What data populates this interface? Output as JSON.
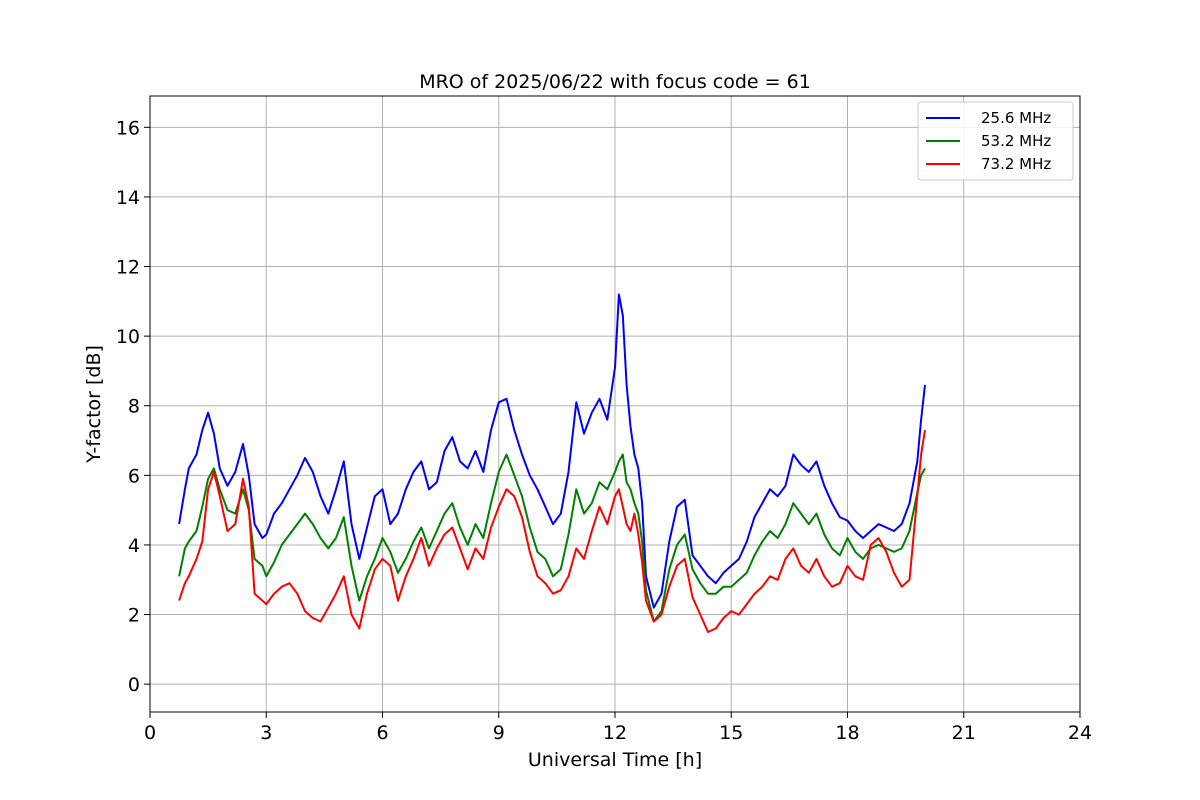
{
  "chart_data": {
    "type": "line",
    "title": "MRO of 2025/06/22 with focus code = 61",
    "xlabel": "Universal Time [h]",
    "ylabel": "Y-factor [dB]",
    "xlim": [
      0,
      24
    ],
    "ylim": [
      -0.8,
      16.9
    ],
    "xticks": [
      0,
      3,
      6,
      9,
      12,
      15,
      18,
      21,
      24
    ],
    "yticks": [
      0,
      2,
      4,
      6,
      8,
      10,
      12,
      14,
      16
    ],
    "grid": true,
    "legend_position": "top-right",
    "series": [
      {
        "name": "25.6 MHz",
        "color": "#0000ff",
        "x": [
          0.75,
          0.9,
          1.0,
          1.2,
          1.35,
          1.5,
          1.65,
          1.8,
          2.0,
          2.2,
          2.4,
          2.55,
          2.7,
          2.9,
          3.0,
          3.2,
          3.4,
          3.6,
          3.8,
          4.0,
          4.2,
          4.4,
          4.6,
          4.8,
          5.0,
          5.2,
          5.4,
          5.6,
          5.8,
          6.0,
          6.2,
          6.4,
          6.6,
          6.8,
          7.0,
          7.2,
          7.4,
          7.6,
          7.8,
          8.0,
          8.2,
          8.4,
          8.6,
          8.8,
          9.0,
          9.2,
          9.4,
          9.6,
          9.8,
          10.0,
          10.2,
          10.4,
          10.6,
          10.8,
          11.0,
          11.2,
          11.4,
          11.6,
          11.8,
          12.0,
          12.1,
          12.2,
          12.3,
          12.4,
          12.5,
          12.6,
          12.7,
          12.8,
          13.0,
          13.2,
          13.4,
          13.6,
          13.8,
          14.0,
          14.2,
          14.4,
          14.6,
          14.8,
          15.0,
          15.2,
          15.4,
          15.6,
          15.8,
          16.0,
          16.2,
          16.4,
          16.6,
          16.8,
          17.0,
          17.2,
          17.4,
          17.6,
          17.8,
          18.0,
          18.2,
          18.4,
          18.6,
          18.8,
          19.0,
          19.2,
          19.4,
          19.6,
          19.8,
          19.9,
          20.0
        ],
        "y": [
          4.6,
          5.6,
          6.2,
          6.6,
          7.3,
          7.8,
          7.2,
          6.2,
          5.7,
          6.1,
          6.9,
          6.0,
          4.6,
          4.2,
          4.3,
          4.9,
          5.2,
          5.6,
          6.0,
          6.5,
          6.1,
          5.4,
          4.9,
          5.6,
          6.4,
          4.6,
          3.6,
          4.5,
          5.4,
          5.6,
          4.6,
          4.9,
          5.6,
          6.1,
          6.4,
          5.6,
          5.8,
          6.7,
          7.1,
          6.4,
          6.2,
          6.7,
          6.1,
          7.3,
          8.1,
          8.2,
          7.3,
          6.6,
          6.0,
          5.6,
          5.1,
          4.6,
          4.9,
          6.1,
          8.1,
          7.2,
          7.8,
          8.2,
          7.6,
          9.1,
          11.2,
          10.6,
          8.6,
          7.4,
          6.6,
          6.2,
          5.2,
          3.1,
          2.2,
          2.6,
          4.1,
          5.1,
          5.3,
          3.7,
          3.4,
          3.1,
          2.9,
          3.2,
          3.4,
          3.6,
          4.1,
          4.8,
          5.2,
          5.6,
          5.4,
          5.7,
          6.6,
          6.3,
          6.1,
          6.4,
          5.7,
          5.2,
          4.8,
          4.7,
          4.4,
          4.2,
          4.4,
          4.6,
          4.5,
          4.4,
          4.6,
          5.2,
          6.4,
          7.6,
          8.6
        ]
      },
      {
        "name": "53.2 MHz",
        "color": "#008000",
        "x": [
          0.75,
          0.9,
          1.0,
          1.2,
          1.35,
          1.5,
          1.65,
          1.8,
          2.0,
          2.2,
          2.4,
          2.55,
          2.7,
          2.9,
          3.0,
          3.2,
          3.4,
          3.6,
          3.8,
          4.0,
          4.2,
          4.4,
          4.6,
          4.8,
          5.0,
          5.2,
          5.4,
          5.6,
          5.8,
          6.0,
          6.2,
          6.4,
          6.6,
          6.8,
          7.0,
          7.2,
          7.4,
          7.6,
          7.8,
          8.0,
          8.2,
          8.4,
          8.6,
          8.8,
          9.0,
          9.2,
          9.4,
          9.6,
          9.8,
          10.0,
          10.2,
          10.4,
          10.6,
          10.8,
          11.0,
          11.2,
          11.4,
          11.6,
          11.8,
          12.0,
          12.1,
          12.2,
          12.3,
          12.4,
          12.5,
          12.6,
          12.7,
          12.8,
          13.0,
          13.2,
          13.4,
          13.6,
          13.8,
          14.0,
          14.2,
          14.4,
          14.6,
          14.8,
          15.0,
          15.2,
          15.4,
          15.6,
          15.8,
          16.0,
          16.2,
          16.4,
          16.6,
          16.8,
          17.0,
          17.2,
          17.4,
          17.6,
          17.8,
          18.0,
          18.2,
          18.4,
          18.6,
          18.8,
          19.0,
          19.2,
          19.4,
          19.6,
          19.8,
          19.9,
          20.0
        ],
        "y": [
          3.1,
          3.9,
          4.1,
          4.4,
          5.1,
          5.9,
          6.2,
          5.6,
          5.0,
          4.9,
          5.6,
          5.0,
          3.6,
          3.4,
          3.1,
          3.5,
          4.0,
          4.3,
          4.6,
          4.9,
          4.6,
          4.2,
          3.9,
          4.2,
          4.8,
          3.4,
          2.4,
          3.1,
          3.6,
          4.2,
          3.8,
          3.2,
          3.6,
          4.1,
          4.5,
          3.9,
          4.4,
          4.9,
          5.2,
          4.5,
          4.0,
          4.6,
          4.2,
          5.2,
          6.1,
          6.6,
          6.0,
          5.4,
          4.5,
          3.8,
          3.6,
          3.1,
          3.3,
          4.3,
          5.6,
          4.9,
          5.2,
          5.8,
          5.6,
          6.1,
          6.4,
          6.6,
          5.8,
          5.6,
          5.2,
          4.9,
          4.1,
          2.7,
          1.8,
          2.1,
          3.3,
          4.0,
          4.3,
          3.3,
          2.9,
          2.6,
          2.6,
          2.8,
          2.8,
          3.0,
          3.2,
          3.7,
          4.1,
          4.4,
          4.2,
          4.6,
          5.2,
          4.9,
          4.6,
          4.9,
          4.3,
          3.9,
          3.7,
          4.2,
          3.8,
          3.6,
          3.9,
          4.0,
          3.9,
          3.8,
          3.9,
          4.4,
          5.5,
          6.0,
          6.2
        ]
      },
      {
        "name": "73.2 MHz",
        "color": "#ff0000",
        "x": [
          0.75,
          0.9,
          1.0,
          1.2,
          1.35,
          1.5,
          1.65,
          1.8,
          2.0,
          2.2,
          2.4,
          2.55,
          2.7,
          2.9,
          3.0,
          3.2,
          3.4,
          3.6,
          3.8,
          4.0,
          4.2,
          4.4,
          4.6,
          4.8,
          5.0,
          5.2,
          5.4,
          5.6,
          5.8,
          6.0,
          6.2,
          6.4,
          6.6,
          6.8,
          7.0,
          7.2,
          7.4,
          7.6,
          7.8,
          8.0,
          8.2,
          8.4,
          8.6,
          8.8,
          9.0,
          9.2,
          9.4,
          9.6,
          9.8,
          10.0,
          10.2,
          10.4,
          10.6,
          10.8,
          11.0,
          11.2,
          11.4,
          11.6,
          11.8,
          12.0,
          12.1,
          12.2,
          12.3,
          12.4,
          12.5,
          12.6,
          12.7,
          12.8,
          13.0,
          13.2,
          13.4,
          13.6,
          13.8,
          14.0,
          14.2,
          14.4,
          14.6,
          14.8,
          15.0,
          15.2,
          15.4,
          15.6,
          15.8,
          16.0,
          16.2,
          16.4,
          16.6,
          16.8,
          17.0,
          17.2,
          17.4,
          17.6,
          17.8,
          18.0,
          18.2,
          18.4,
          18.6,
          18.8,
          19.0,
          19.2,
          19.4,
          19.6,
          19.8,
          19.9,
          20.0
        ],
        "y": [
          2.4,
          2.9,
          3.1,
          3.6,
          4.1,
          5.6,
          6.1,
          5.4,
          4.4,
          4.6,
          5.9,
          5.1,
          2.6,
          2.4,
          2.3,
          2.6,
          2.8,
          2.9,
          2.6,
          2.1,
          1.9,
          1.8,
          2.2,
          2.6,
          3.1,
          2.0,
          1.6,
          2.6,
          3.3,
          3.6,
          3.4,
          2.4,
          3.1,
          3.6,
          4.2,
          3.4,
          3.9,
          4.3,
          4.5,
          3.9,
          3.3,
          3.9,
          3.6,
          4.5,
          5.1,
          5.6,
          5.4,
          4.8,
          3.8,
          3.1,
          2.9,
          2.6,
          2.7,
          3.1,
          3.9,
          3.6,
          4.4,
          5.1,
          4.6,
          5.4,
          5.6,
          5.1,
          4.6,
          4.4,
          4.9,
          4.3,
          3.5,
          2.4,
          1.8,
          2.0,
          2.8,
          3.4,
          3.6,
          2.5,
          2.0,
          1.5,
          1.6,
          1.9,
          2.1,
          2.0,
          2.3,
          2.6,
          2.8,
          3.1,
          3.0,
          3.6,
          3.9,
          3.4,
          3.2,
          3.6,
          3.1,
          2.8,
          2.9,
          3.4,
          3.1,
          3.0,
          4.0,
          4.2,
          3.8,
          3.2,
          2.8,
          3.0,
          5.4,
          6.6,
          7.3
        ]
      }
    ]
  }
}
